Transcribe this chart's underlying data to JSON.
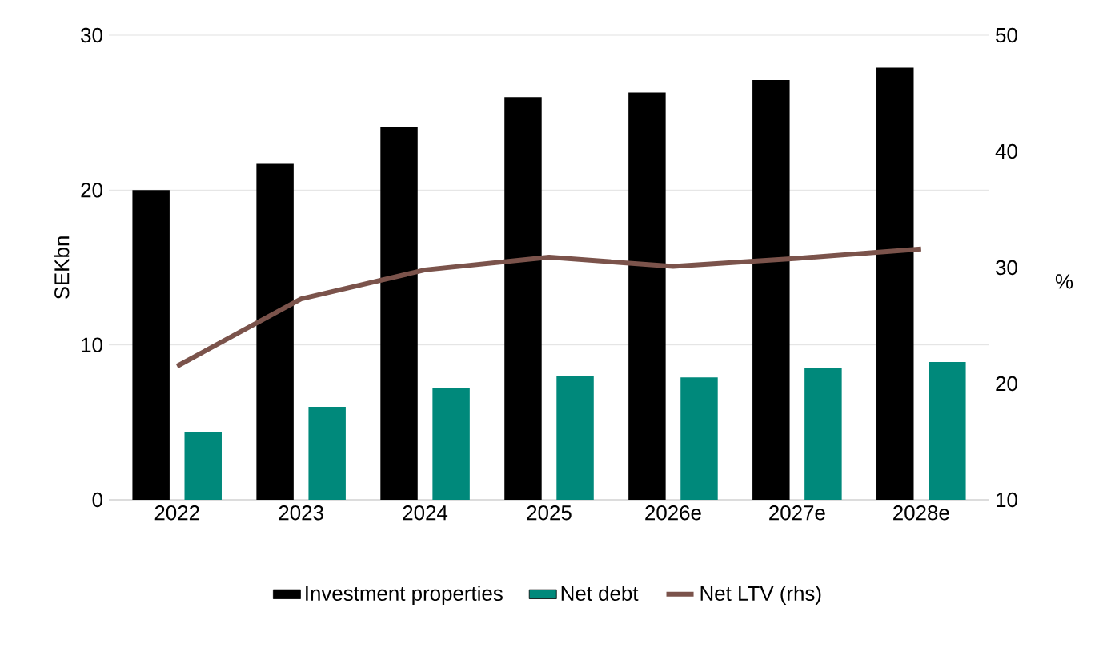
{
  "chart_data": {
    "type": "bar",
    "categories": [
      "2022",
      "2023",
      "2024",
      "2025",
      "2026e",
      "2027e",
      "2028e"
    ],
    "series": [
      {
        "name": "Investment properties",
        "color": "#000000",
        "values": [
          20.0,
          21.7,
          24.1,
          26.0,
          26.3,
          27.1,
          27.9
        ]
      },
      {
        "name": "Net debt",
        "color": "#00897b",
        "values": [
          4.4,
          6.0,
          7.2,
          8.0,
          7.9,
          8.5,
          8.9
        ]
      },
      {
        "name": "Net LTV (rhs)",
        "type": "line",
        "axis": "y2",
        "color": "#7b534b",
        "values": [
          21.5,
          27.3,
          29.8,
          30.9,
          30.1,
          30.8,
          31.6
        ]
      }
    ],
    "ylabel": "SEKbn",
    "y2label": "%",
    "ylim": [
      0,
      30
    ],
    "yticks": [
      0,
      10,
      20,
      30
    ],
    "y2lim": [
      10,
      50
    ],
    "y2ticks": [
      10,
      20,
      30,
      40,
      50
    ],
    "grid": "y",
    "legend": "bottom",
    "marker": "none",
    "line_style": "solid"
  }
}
